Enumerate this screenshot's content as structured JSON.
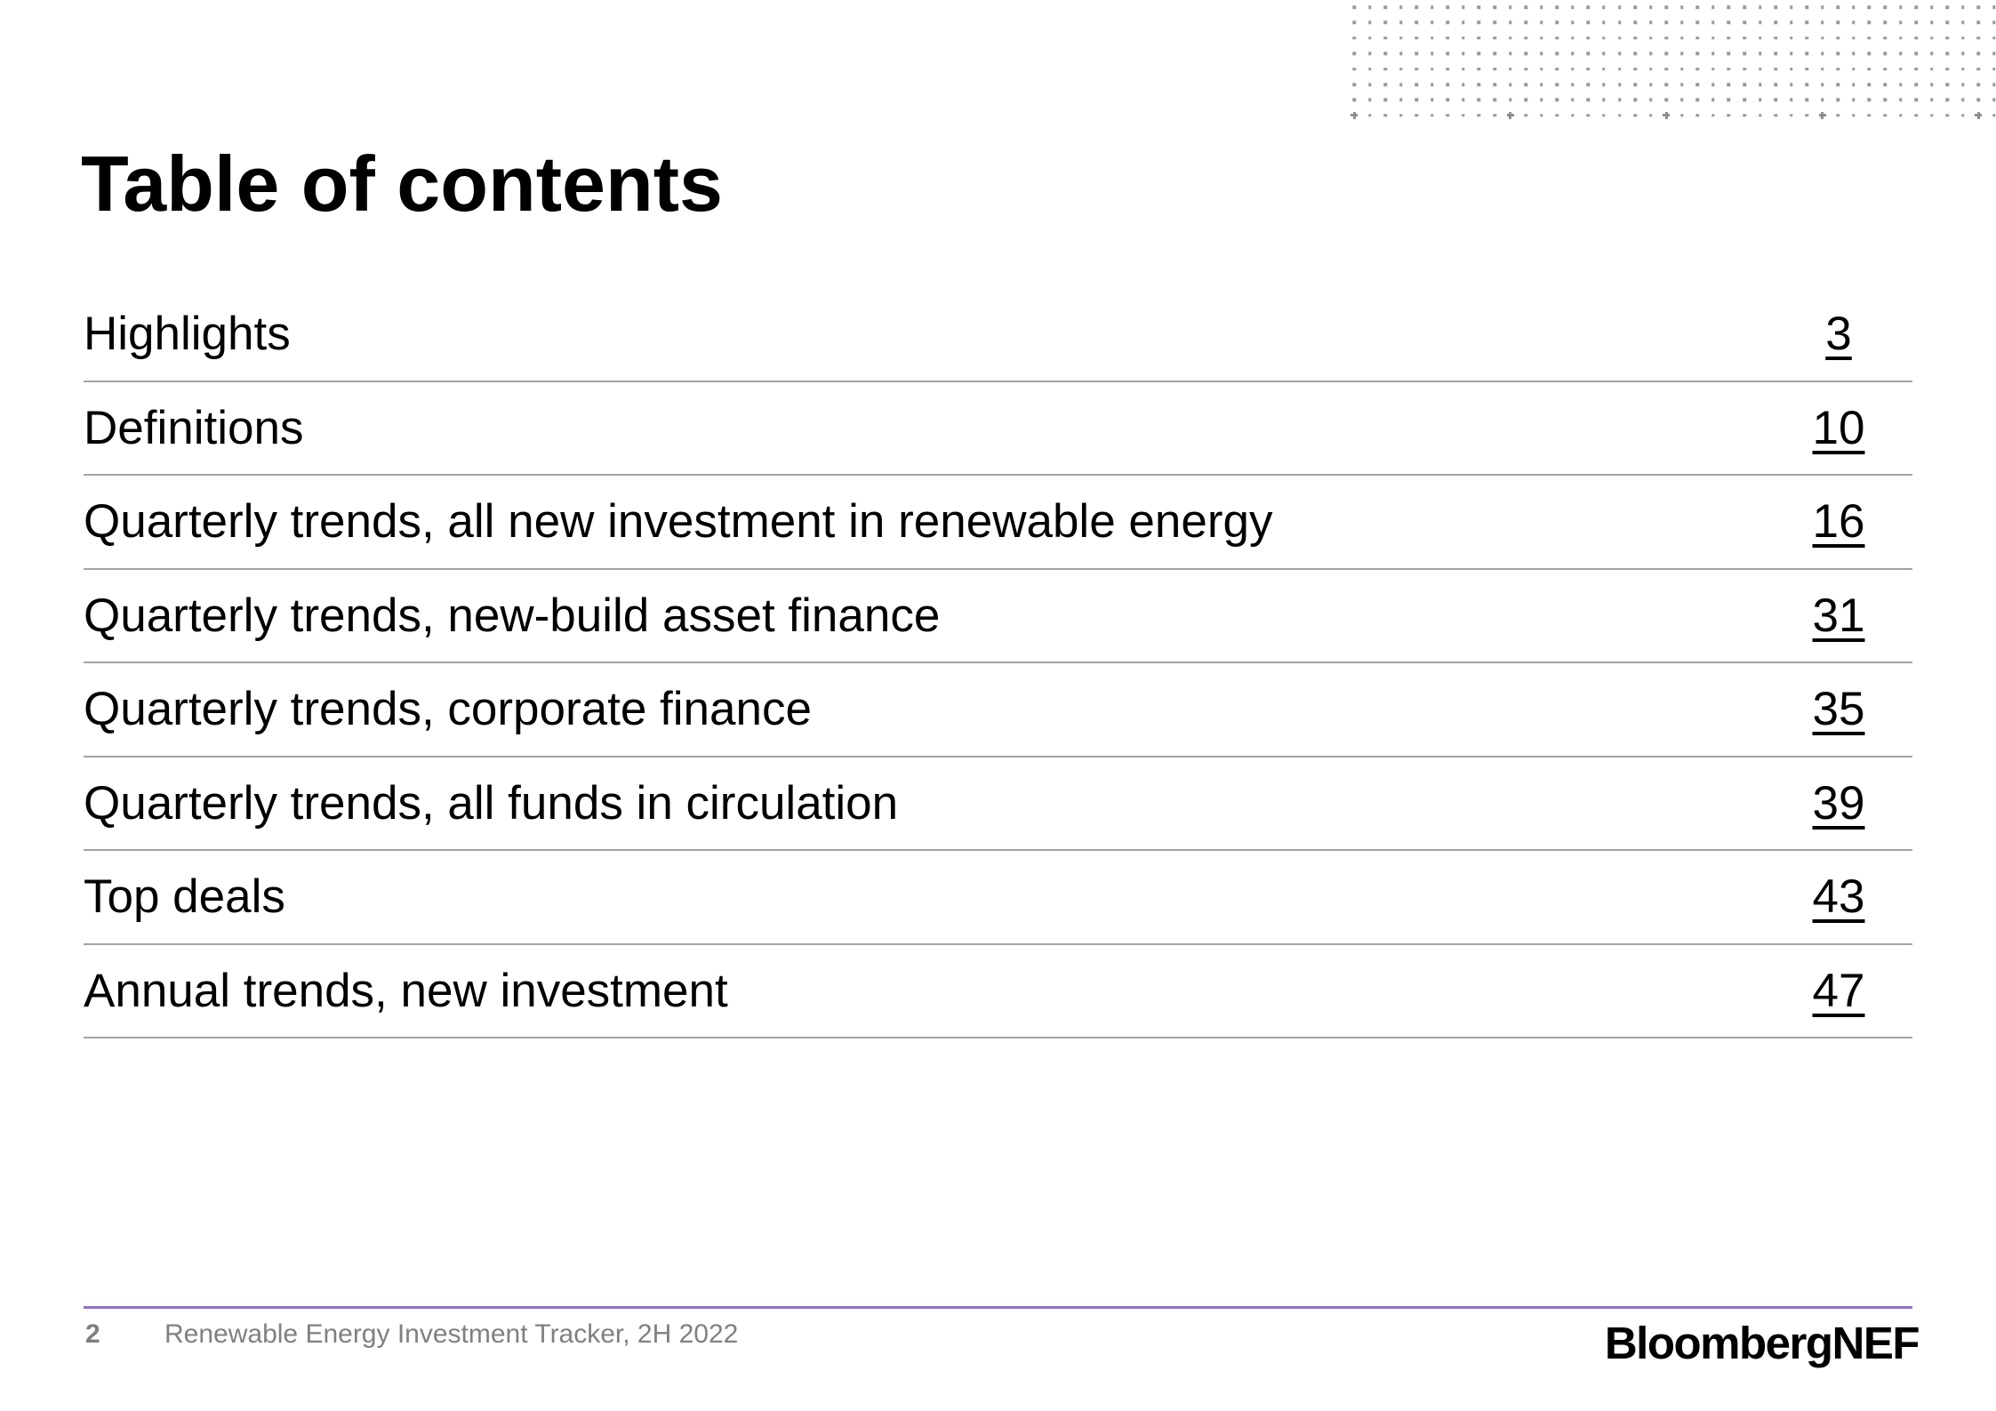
{
  "slide": {
    "title": "Table of contents",
    "page_number": "2",
    "footer_text": "Renewable Energy Investment Tracker, 2H 2022",
    "brand": "BloombergNEF"
  },
  "toc": {
    "entries": [
      {
        "label": "Highlights",
        "page": "3"
      },
      {
        "label": "Definitions",
        "page": "10"
      },
      {
        "label": "Quarterly trends, all new investment in renewable energy",
        "page": "16"
      },
      {
        "label": "Quarterly trends, new-build asset finance",
        "page": "31"
      },
      {
        "label": "Quarterly trends, corporate finance",
        "page": "35"
      },
      {
        "label": "Quarterly trends, all funds in circulation",
        "page": "39"
      },
      {
        "label": "Top deals",
        "page": "43"
      },
      {
        "label": "Annual trends, new investment",
        "page": "47"
      }
    ]
  },
  "colors": {
    "text_black": "#000000",
    "separator_gray": "#a3a3a3",
    "footer_gray": "#808080",
    "accent_purple": "#8f74c2",
    "dot_gray": "#999999"
  },
  "decor": {
    "dot_grid": {
      "rows": 8,
      "cols": 42,
      "h_spacing": 17.56,
      "v_spacing": 17.4,
      "big_dot_row": 7,
      "big_dot_every": 10
    }
  }
}
